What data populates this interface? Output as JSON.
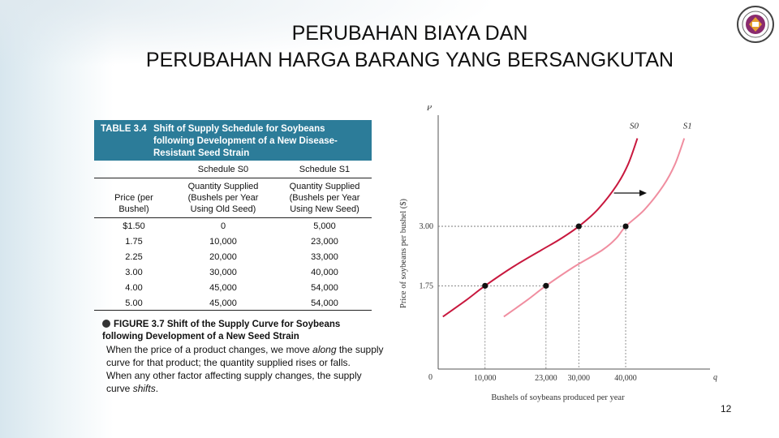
{
  "slide": {
    "title_line1": "PERUBAHAN BIAYA DAN",
    "title_line2": "PERUBAHAN HARGA BARANG YANG BERSANGKUTAN",
    "page_number": "12"
  },
  "table": {
    "label": "TABLE 3.4",
    "caption": "Shift of Supply Schedule for Soybeans following Development of a New Disease-Resistant Seed Strain",
    "schedule_s0": "Schedule S0",
    "schedule_s1": "Schedule S1",
    "col_price": "Price (per Bushel)",
    "col_old": "Quantity Supplied (Bushels per Year Using Old Seed)",
    "col_new": "Quantity Supplied (Bushels per Year Using New Seed)",
    "rows": [
      {
        "price": "$1.50",
        "old": "0",
        "new": "5,000"
      },
      {
        "price": "1.75",
        "old": "10,000",
        "new": "23,000"
      },
      {
        "price": "2.25",
        "old": "20,000",
        "new": "33,000"
      },
      {
        "price": "3.00",
        "old": "30,000",
        "new": "40,000"
      },
      {
        "price": "4.00",
        "old": "45,000",
        "new": "54,000"
      },
      {
        "price": "5.00",
        "old": "45,000",
        "new": "54,000"
      }
    ]
  },
  "figure": {
    "label": "FIGURE 3.7",
    "caption": "Shift of the Supply Curve for Soybeans following Development of a New Seed Strain"
  },
  "body": {
    "part1": "When the price of a product changes, we move ",
    "part1_em": "along",
    "part2": " the supply curve for that product; the quantity supplied rises or falls.",
    "part3": "When any other factor affecting supply changes, the supply curve ",
    "part3_em": "shifts",
    "part3_end": "."
  },
  "chart_data": {
    "type": "line",
    "xlabel": "Bushels of soybeans produced per year",
    "ylabel": "Price of soybeans per bushel ($)",
    "x_axis_symbol": "q",
    "y_axis_symbol": "P",
    "origin_label": "0",
    "xlim": [
      0,
      58000
    ],
    "ylim": [
      0,
      5.2
    ],
    "x_ticks": [
      {
        "value": 10000,
        "label": "10,000"
      },
      {
        "value": 23000,
        "label": "23,000"
      },
      {
        "value": 30000,
        "label": "30,000"
      },
      {
        "value": 40000,
        "label": "40,000"
      }
    ],
    "y_ticks": [
      {
        "value": 1.75,
        "label": "1.75"
      },
      {
        "value": 3.0,
        "label": "3.00"
      }
    ],
    "series": [
      {
        "name": "S0",
        "color": "#c8183e",
        "points": [
          [
            1000,
            1.1
          ],
          [
            6000,
            1.45
          ],
          [
            10000,
            1.75
          ],
          [
            16000,
            2.15
          ],
          [
            22000,
            2.5
          ],
          [
            26000,
            2.73
          ],
          [
            30000,
            3.0
          ],
          [
            34000,
            3.35
          ],
          [
            38000,
            3.85
          ],
          [
            40500,
            4.3
          ],
          [
            42500,
            4.85
          ]
        ],
        "marked": [
          [
            10000,
            1.75
          ],
          [
            30000,
            3.0
          ]
        ]
      },
      {
        "name": "S1",
        "color": "#f08ea0",
        "points": [
          [
            14000,
            1.1
          ],
          [
            19000,
            1.45
          ],
          [
            23000,
            1.75
          ],
          [
            29000,
            2.15
          ],
          [
            35000,
            2.5
          ],
          [
            38000,
            2.75
          ],
          [
            40000,
            3.0
          ],
          [
            44000,
            3.35
          ],
          [
            48000,
            3.85
          ],
          [
            50500,
            4.3
          ],
          [
            52500,
            4.85
          ]
        ],
        "marked": [
          [
            23000,
            1.75
          ],
          [
            40000,
            3.0
          ]
        ]
      }
    ],
    "grid": false
  },
  "colors": {
    "table_header": "#2c7c99",
    "s0": "#c8183e",
    "s1": "#f08ea0"
  },
  "icons": {
    "logo": "university-seal-icon",
    "figure": "figure-bullet-icon"
  }
}
